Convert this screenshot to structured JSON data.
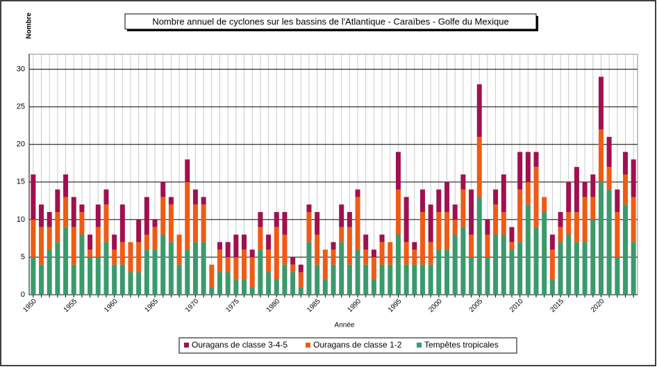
{
  "chart_data": {
    "type": "stacked_bar",
    "title": "Nombre annuel de cyclones sur les bassins de l'Atlantique - Caraïbes - Golfe du Mexique",
    "y_label": "Nombre",
    "x_label": "Année",
    "categories": [
      "1950",
      null,
      null,
      null,
      null,
      "1955",
      null,
      null,
      null,
      null,
      "1960",
      null,
      null,
      null,
      null,
      "1965",
      null,
      null,
      null,
      null,
      "1970",
      null,
      null,
      null,
      null,
      "1975",
      null,
      null,
      null,
      null,
      "1980",
      null,
      null,
      null,
      null,
      "1985",
      null,
      null,
      null,
      null,
      "1990",
      null,
      null,
      null,
      null,
      "1995",
      null,
      null,
      null,
      null,
      "2000",
      null,
      null,
      null,
      null,
      "2005",
      null,
      null,
      null,
      null,
      "2010",
      null,
      null,
      null,
      null,
      "2015",
      null,
      null,
      null,
      null,
      "2020",
      null,
      null,
      null,
      null
    ],
    "series": [
      {
        "name": "Ouragans de classe 3-4-5",
        "color": "#a0104f",
        "values": [
          6,
          3,
          2,
          3,
          3,
          4,
          1,
          2,
          3,
          2,
          2,
          5,
          0,
          3,
          5,
          1,
          2,
          1,
          0,
          3,
          2,
          1,
          0,
          1,
          2,
          3,
          2,
          1,
          2,
          2,
          2,
          3,
          1,
          1,
          1,
          3,
          0,
          1,
          3,
          2,
          1,
          2,
          1,
          1,
          0,
          5,
          6,
          1,
          3,
          5,
          3,
          4,
          2,
          2,
          6,
          7,
          2,
          2,
          5,
          2,
          5,
          4,
          2,
          0,
          2,
          2,
          4,
          6,
          2,
          3,
          7,
          4,
          3,
          3,
          5
        ]
      },
      {
        "name": "Ouragans de classe 1-2",
        "color": "#f05a14",
        "values": [
          5,
          5,
          3,
          4,
          4,
          5,
          3,
          1,
          4,
          5,
          2,
          3,
          4,
          4,
          2,
          3,
          5,
          5,
          4,
          9,
          5,
          5,
          3,
          3,
          2,
          3,
          4,
          4,
          3,
          3,
          7,
          4,
          1,
          2,
          4,
          4,
          4,
          2,
          2,
          5,
          7,
          2,
          3,
          3,
          3,
          6,
          3,
          2,
          7,
          3,
          5,
          5,
          2,
          5,
          3,
          8,
          3,
          4,
          3,
          1,
          7,
          3,
          8,
          2,
          4,
          2,
          3,
          4,
          6,
          3,
          7,
          3,
          6,
          4,
          6
        ]
      },
      {
        "name": "Tempêtes tropicales",
        "color": "#3a9a6c",
        "values": [
          5,
          4,
          6,
          7,
          9,
          4,
          8,
          5,
          5,
          7,
          4,
          4,
          3,
          3,
          6,
          6,
          8,
          7,
          4,
          6,
          7,
          7,
          1,
          3,
          3,
          2,
          2,
          1,
          6,
          3,
          2,
          4,
          3,
          1,
          7,
          4,
          2,
          4,
          7,
          4,
          6,
          4,
          2,
          4,
          4,
          8,
          4,
          4,
          4,
          4,
          6,
          6,
          8,
          9,
          5,
          13,
          5,
          8,
          8,
          6,
          7,
          12,
          9,
          11,
          2,
          7,
          8,
          7,
          7,
          10,
          15,
          14,
          5,
          12,
          7
        ]
      }
    ],
    "ylim": [
      0,
      32
    ],
    "yticks": [
      0,
      5,
      10,
      15,
      20,
      25,
      30
    ],
    "grid": true
  }
}
